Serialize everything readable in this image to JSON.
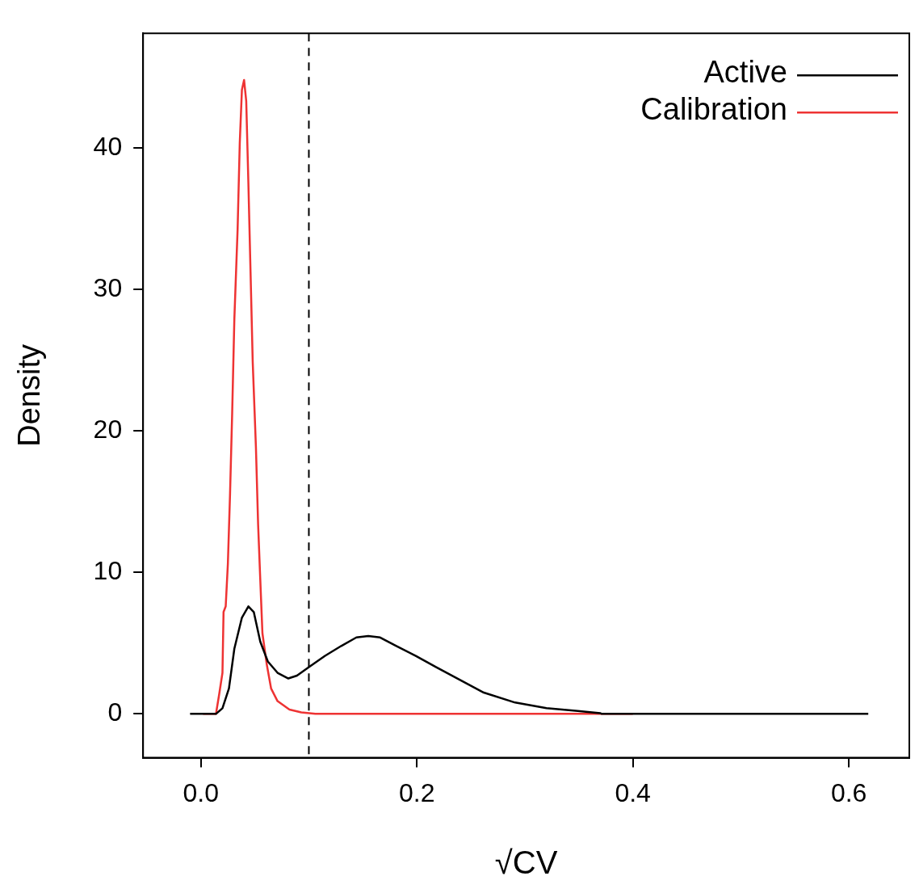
{
  "chart_data": {
    "type": "line",
    "xlabel": "√CV",
    "ylabel": "Density",
    "xlim": [
      -0.0535,
      0.656
    ],
    "ylim": [
      -3.1,
      48.1
    ],
    "xticks": [
      {
        "value": 0,
        "label": "0.0"
      },
      0.2,
      0.4,
      0.6
    ],
    "yticks": [
      0,
      10,
      20,
      30,
      40
    ],
    "grid": false,
    "legend": "top right",
    "marker": "none",
    "line_style": "solid",
    "series": [
      {
        "name": "Active",
        "color": "#000000",
        "x": [
          -0.01,
          0.014,
          0.02,
          0.026,
          0.031,
          0.038,
          0.044,
          0.049,
          0.055,
          0.062,
          0.071,
          0.081,
          0.089,
          0.1,
          0.115,
          0.13,
          0.144,
          0.155,
          0.166,
          0.181,
          0.199,
          0.218,
          0.24,
          0.262,
          0.291,
          0.32,
          0.349,
          0.37,
          0.371,
          0.618
        ],
        "values": [
          0,
          0,
          0.4,
          1.8,
          4.6,
          6.8,
          7.6,
          7.2,
          5.1,
          3.7,
          2.9,
          2.5,
          2.7,
          3.3,
          4.1,
          4.8,
          5.4,
          5.5,
          5.4,
          4.8,
          4.1,
          3.3,
          2.4,
          1.5,
          0.8,
          0.4,
          0.2,
          0.05,
          0,
          0
        ]
      },
      {
        "name": "Calibration",
        "color": "#ee3333",
        "x": [
          0.002,
          0.014,
          0.017,
          0.02,
          0.021,
          0.023,
          0.025,
          0.027,
          0.029,
          0.031,
          0.034,
          0.036,
          0.038,
          0.04,
          0.042,
          0.044,
          0.046,
          0.048,
          0.051,
          0.053,
          0.055,
          0.057,
          0.061,
          0.065,
          0.071,
          0.082,
          0.093,
          0.106,
          0.4
        ],
        "values": [
          0,
          0,
          1.4,
          2.9,
          7.2,
          7.6,
          10.6,
          15.5,
          21.3,
          27.9,
          34.2,
          40.3,
          44.1,
          44.8,
          43.3,
          37.5,
          31.2,
          24.9,
          18.8,
          13.4,
          9.5,
          5.7,
          3.5,
          1.8,
          0.9,
          0.3,
          0.1,
          0,
          0
        ]
      }
    ],
    "ref_lines": [
      {
        "axis": "x",
        "value": 0.1,
        "color": "#000000",
        "line_style": "dashed"
      }
    ]
  }
}
